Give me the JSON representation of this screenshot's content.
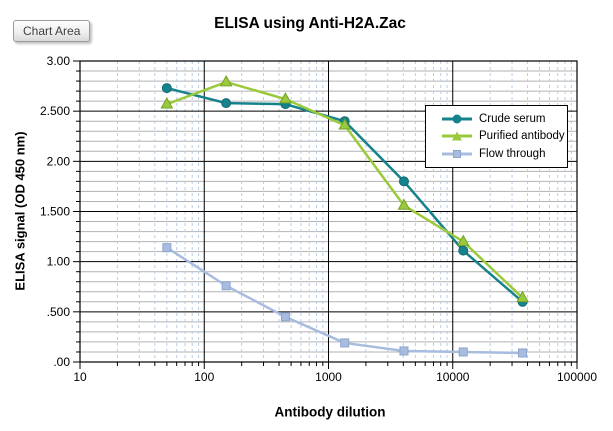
{
  "tooltip": {
    "label": "Chart Area"
  },
  "chart_data": {
    "type": "line",
    "title": "ELISA using Anti-H2A.Zac",
    "xlabel": "Antibody dilution",
    "ylabel": "ELISA signal (OD 450 nm)",
    "x_scale": "log",
    "xlim": [
      10,
      100000
    ],
    "ylim": [
      0,
      3
    ],
    "y_major_step": 0.5,
    "y_minor_step": 0.1,
    "grid": {
      "major_color": "#000000",
      "minor_h_color": "#b2b2b2",
      "minor_v_color": "#b9cde5"
    },
    "x": [
      50,
      150,
      450,
      1350,
      4050,
      12150,
      36450
    ],
    "series": [
      {
        "name": "Crude serum",
        "marker": "circle",
        "color": "#16828c",
        "edge": "#0d6b73",
        "values": [
          2.73,
          2.58,
          2.57,
          2.4,
          1.8,
          1.11,
          0.6
        ]
      },
      {
        "name": "Purified antibody",
        "marker": "triangle",
        "color": "#9aca3b",
        "edge": "#73a124",
        "values": [
          2.57,
          2.79,
          2.62,
          2.36,
          1.56,
          1.2,
          0.64
        ]
      },
      {
        "name": "Flow through",
        "marker": "square",
        "color": "#a7bcdf",
        "edge": "#8ba5cc",
        "values": [
          1.14,
          0.76,
          0.45,
          0.19,
          0.11,
          0.1,
          0.09
        ]
      }
    ],
    "x_tick_labels": [
      "10",
      "100",
      "1000",
      "10000",
      "100000"
    ],
    "y_tick_labels": [
      "3.00",
      "2.500",
      "2.00",
      "1.500",
      "1.00",
      ".500",
      ".00"
    ],
    "legend_position": "right-middle"
  }
}
